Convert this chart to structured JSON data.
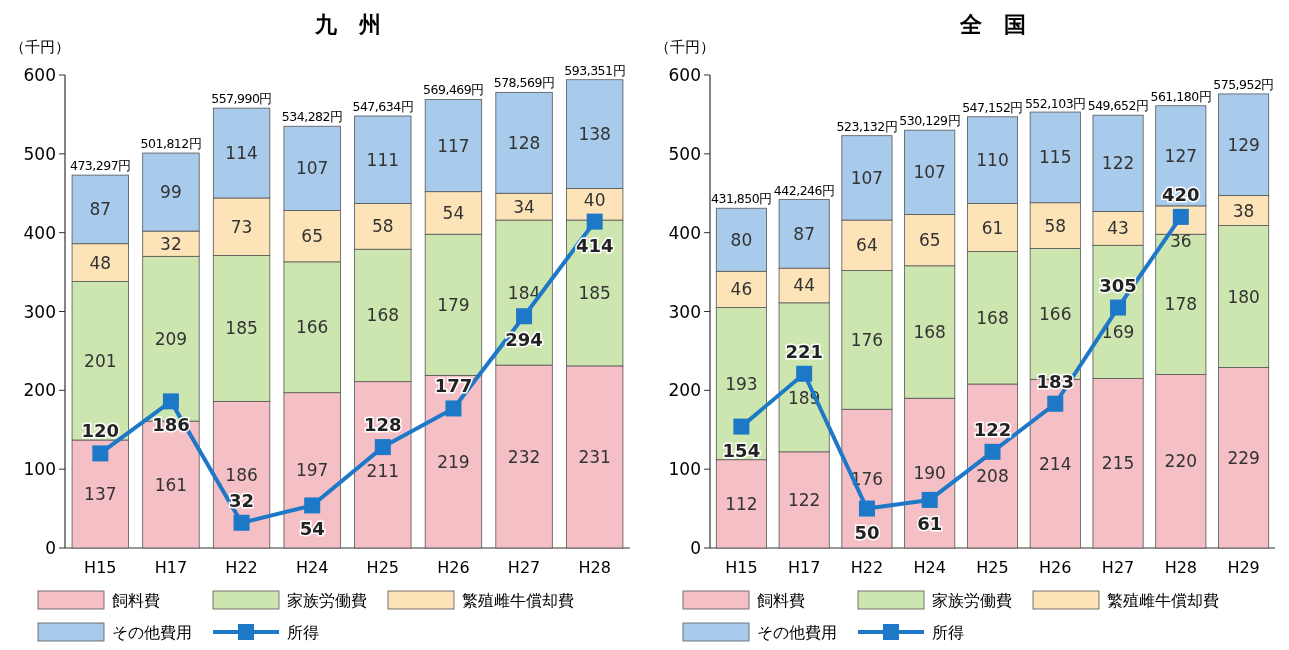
{
  "chart_data": [
    {
      "type": "bar",
      "stacked": true,
      "title": "九　州",
      "ylabel": "（千円）",
      "categories": [
        "H15",
        "H17",
        "H22",
        "H24",
        "H25",
        "H26",
        "H27",
        "H28"
      ],
      "series": [
        {
          "name": "飼料費",
          "color": "#f5bfc6",
          "values": [
            137,
            161,
            186,
            197,
            211,
            219,
            232,
            231
          ]
        },
        {
          "name": "家族労働費",
          "color": "#cde6b0",
          "values": [
            201,
            209,
            185,
            166,
            168,
            179,
            184,
            185
          ]
        },
        {
          "name": "繁殖雌牛償却費",
          "color": "#fde3b8",
          "values": [
            48,
            32,
            73,
            65,
            58,
            54,
            34,
            40
          ]
        },
        {
          "name": "その他費用",
          "color": "#a9cbeb",
          "values": [
            87,
            99,
            114,
            107,
            111,
            117,
            128,
            138
          ]
        },
        {
          "name": "所得",
          "type": "line",
          "marker": "square",
          "color": "#1e78c8",
          "values": [
            120,
            186,
            32,
            54,
            128,
            177,
            294,
            414
          ]
        }
      ],
      "annotations": [
        {
          "text": "473,297円",
          "x": "H15",
          "y": 473
        },
        {
          "text": "501,812円",
          "x": "H17",
          "y": 501
        },
        {
          "text": "557,990円",
          "x": "H22",
          "y": 558
        },
        {
          "text": "534,282円",
          "x": "H24",
          "y": 535
        },
        {
          "text": "547,634円",
          "x": "H25",
          "y": 548
        },
        {
          "text": "569,469円",
          "x": "H26",
          "y": 569
        },
        {
          "text": "578,569円",
          "x": "H27",
          "y": 578
        },
        {
          "text": "593,351円",
          "x": "H28",
          "y": 594
        }
      ],
      "ylim": [
        0,
        600
      ],
      "yticks": [
        0,
        100,
        200,
        300,
        400,
        500,
        600
      ],
      "data_labels": true,
      "legend": "bottom"
    },
    {
      "type": "bar",
      "stacked": true,
      "title": "全　国",
      "ylabel": "（千円）",
      "categories": [
        "H15",
        "H17",
        "H22",
        "H24",
        "H25",
        "H26",
        "H27",
        "H28",
        "H29"
      ],
      "series": [
        {
          "name": "飼料費",
          "color": "#f5bfc6",
          "values": [
            112,
            122,
            176,
            190,
            208,
            214,
            215,
            220,
            229
          ]
        },
        {
          "name": "家族労働費",
          "color": "#cde6b0",
          "values": [
            193,
            189,
            176,
            168,
            168,
            166,
            169,
            178,
            180
          ]
        },
        {
          "name": "繁殖雌牛償却費",
          "color": "#fde3b8",
          "values": [
            46,
            44,
            64,
            65,
            61,
            58,
            43,
            36,
            38
          ]
        },
        {
          "name": "その他費用",
          "color": "#a9cbeb",
          "values": [
            80,
            87,
            107,
            107,
            110,
            115,
            122,
            127,
            129
          ]
        },
        {
          "name": "所得",
          "type": "line",
          "marker": "square",
          "color": "#1e78c8",
          "values": [
            154,
            221,
            50,
            61,
            122,
            183,
            305,
            420,
            null
          ]
        }
      ],
      "annotations": [
        {
          "text": "431,850円",
          "x": "H15",
          "y": 431
        },
        {
          "text": "442,246円",
          "x": "H17",
          "y": 442
        },
        {
          "text": "523,132円",
          "x": "H22",
          "y": 523
        },
        {
          "text": "530,129円",
          "x": "H24",
          "y": 530
        },
        {
          "text": "547,152円",
          "x": "H25",
          "y": 547
        },
        {
          "text": "552,103円",
          "x": "H26",
          "y": 552
        },
        {
          "text": "549,652円",
          "x": "H27",
          "y": 549
        },
        {
          "text": "561,180円",
          "x": "H28",
          "y": 561
        },
        {
          "text": "575,952円",
          "x": "H29",
          "y": 576
        }
      ],
      "ylim": [
        0,
        600
      ],
      "yticks": [
        0,
        100,
        200,
        300,
        400,
        500,
        600
      ],
      "data_labels": true,
      "legend": "bottom"
    }
  ]
}
